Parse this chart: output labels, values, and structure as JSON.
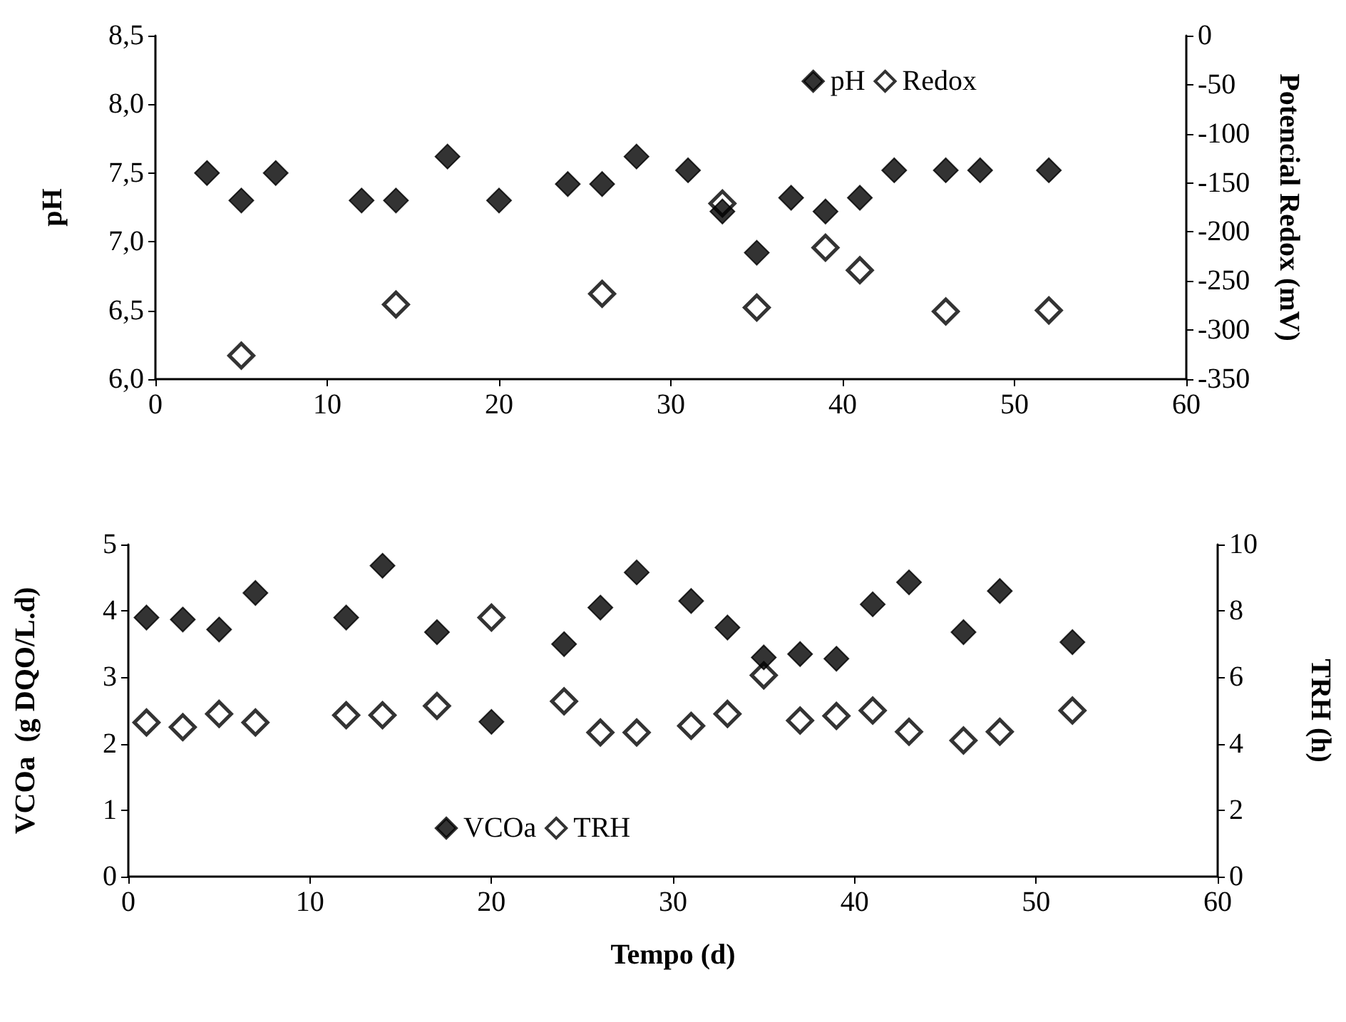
{
  "chart_data": [
    {
      "type": "scatter",
      "ylabel": "pH",
      "y2label": "Potencial Redox (mV)",
      "marker": "diamond",
      "grid": false,
      "legend": "top right",
      "xlim": [
        0,
        60
      ],
      "xticks": [
        0,
        10,
        20,
        30,
        40,
        50,
        60
      ],
      "ylim": [
        6,
        8.5
      ],
      "yticks": [
        {
          "value": 6,
          "label": "6,0"
        },
        {
          "value": 6.5,
          "label": "6,5"
        },
        {
          "value": 7,
          "label": "7,0"
        },
        {
          "value": 7.5,
          "label": "7,5"
        },
        {
          "value": 8,
          "label": "8,0"
        },
        {
          "value": 8.5,
          "label": "8,5"
        }
      ],
      "y2lim": [
        -350,
        0
      ],
      "y2ticks": [
        -350,
        -300,
        -250,
        -200,
        -150,
        -100,
        -50,
        0
      ],
      "series": [
        {
          "name": "pH",
          "color": "#000000",
          "x": [
            3,
            5,
            7,
            12,
            14,
            17,
            20,
            24,
            26,
            28,
            31,
            33,
            35,
            37,
            39,
            41,
            43,
            46,
            48,
            52
          ],
          "values": [
            7.5,
            7.3,
            7.5,
            7.3,
            7.3,
            7.62,
            7.3,
            7.42,
            7.42,
            7.62,
            7.52,
            7.22,
            6.92,
            7.32,
            7.22,
            7.32,
            7.52,
            7.52,
            7.52,
            7.52
          ]
        },
        {
          "name": "Redox",
          "color": "#000000",
          "axis": "y2",
          "x": [
            5,
            14,
            26,
            33,
            35,
            39,
            41,
            46,
            52
          ],
          "values": [
            -326,
            -274,
            -263,
            -171,
            -277,
            -216,
            -239,
            -281,
            -280
          ]
        }
      ]
    },
    {
      "type": "scatter",
      "xlabel": "Tempo (d)",
      "ylabel": "VCOa  (g DQO/L.d)",
      "y2label": "TRH (h)",
      "marker": "diamond",
      "grid": false,
      "legend": "bottom left",
      "xlim": [
        0,
        60
      ],
      "xticks": [
        0,
        10,
        20,
        30,
        40,
        50,
        60
      ],
      "ylim": [
        0,
        5
      ],
      "yticks": [
        0,
        1,
        2,
        3,
        4,
        5
      ],
      "y2lim": [
        0,
        10
      ],
      "y2ticks": [
        0,
        2,
        4,
        6,
        8,
        10
      ],
      "series": [
        {
          "name": "VCOa",
          "color": "#000000",
          "x": [
            1,
            3,
            5,
            7,
            12,
            14,
            17,
            20,
            24,
            26,
            28,
            31,
            33,
            35,
            37,
            39,
            41,
            43,
            46,
            48,
            52
          ],
          "values": [
            3.9,
            3.87,
            3.72,
            4.27,
            3.9,
            4.68,
            3.68,
            2.33,
            3.5,
            4.05,
            4.58,
            4.15,
            3.75,
            3.3,
            3.35,
            3.28,
            4.1,
            4.43,
            3.68,
            4.3,
            3.53
          ]
        },
        {
          "name": "TRH",
          "color": "#000000",
          "axis": "y2",
          "x": [
            1,
            3,
            5,
            7,
            12,
            14,
            17,
            20,
            24,
            26,
            28,
            31,
            33,
            35,
            37,
            39,
            41,
            43,
            46,
            48,
            52
          ],
          "values": [
            4.64,
            4.5,
            4.9,
            4.64,
            4.86,
            4.86,
            5.14,
            7.8,
            5.28,
            4.34,
            4.34,
            4.54,
            4.9,
            6.06,
            4.7,
            4.84,
            5.0,
            4.36,
            4.1,
            4.36,
            5.0
          ]
        }
      ]
    }
  ]
}
